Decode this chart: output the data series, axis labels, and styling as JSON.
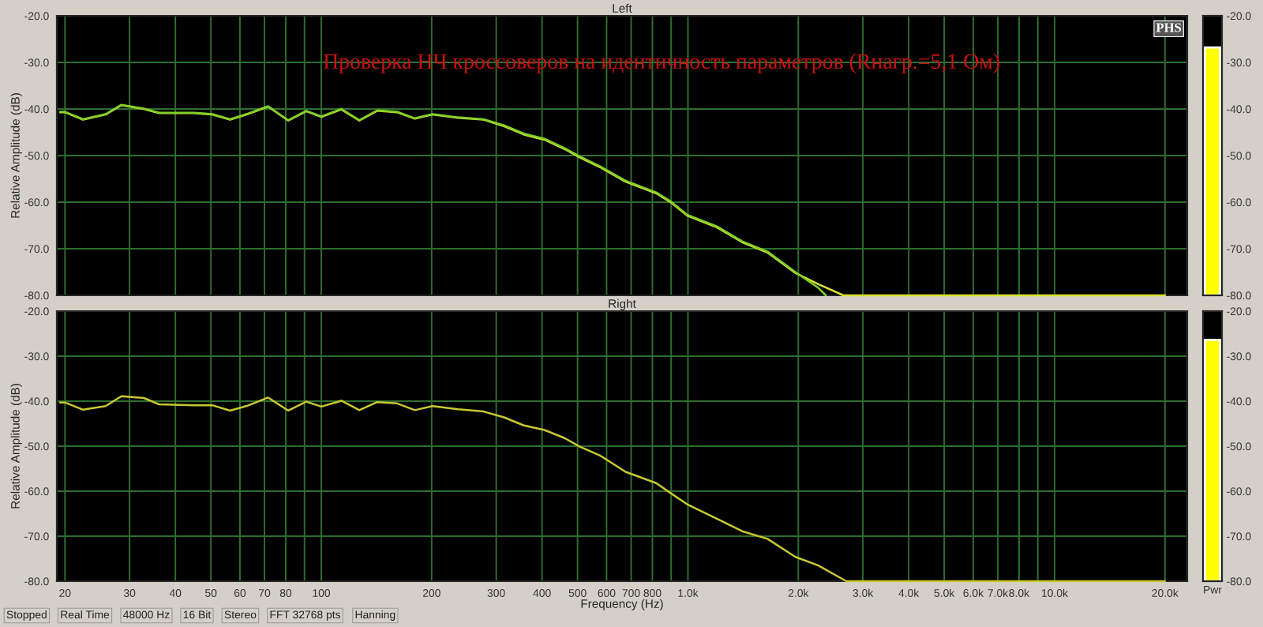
{
  "chart_data": [
    {
      "type": "line",
      "title": "Left",
      "ylabel": "Relative Amplitude (dB)",
      "xlim": [
        19,
        23000
      ],
      "ylim": [
        -80,
        -20
      ],
      "log": "x",
      "grid": true,
      "legend": false,
      "tick_labels": "y",
      "line_style": "solid",
      "marker": "none",
      "xticks": [
        {
          "value": 20,
          "label": null
        },
        {
          "value": 30,
          "label": null
        },
        {
          "value": 40,
          "label": null
        },
        {
          "value": 50,
          "label": null
        },
        {
          "value": 60,
          "label": null
        },
        {
          "value": 70,
          "label": null
        },
        {
          "value": 80,
          "label": null
        },
        {
          "value": 90,
          "label": null
        },
        {
          "value": 100,
          "label": null
        },
        {
          "value": 200,
          "label": null
        },
        {
          "value": 300,
          "label": null
        },
        {
          "value": 400,
          "label": null
        },
        {
          "value": 500,
          "label": null
        },
        {
          "value": 600,
          "label": null
        },
        {
          "value": 700,
          "label": null
        },
        {
          "value": 800,
          "label": null
        },
        {
          "value": 900,
          "label": null
        },
        {
          "value": 1000,
          "label": null
        },
        {
          "value": 2000,
          "label": null
        },
        {
          "value": 3000,
          "label": null
        },
        {
          "value": 4000,
          "label": null
        },
        {
          "value": 5000,
          "label": null
        },
        {
          "value": 6000,
          "label": null
        },
        {
          "value": 7000,
          "label": null
        },
        {
          "value": 8000,
          "label": null
        },
        {
          "value": 9000,
          "label": null
        },
        {
          "value": 10000,
          "label": null
        },
        {
          "value": 20000,
          "label": null
        }
      ],
      "yticks": [
        {
          "value": -20,
          "label": "-20.0"
        },
        {
          "value": -30,
          "label": "-30.0"
        },
        {
          "value": -40,
          "label": "-40.0"
        },
        {
          "value": -50,
          "label": "-50.0"
        },
        {
          "value": -60,
          "label": "-60.0"
        },
        {
          "value": -70,
          "label": "-70.0"
        },
        {
          "value": -80,
          "label": "-80.0"
        }
      ],
      "annotations": [
        "Проверка НЧ кроссоверов на идентичность параметров (Rнагр.=5,1 Ом)",
        "PHS"
      ],
      "series": [
        {
          "color": "#d8e030",
          "x": [
            19.4,
            20,
            22.4,
            25.8,
            28.5,
            32.8,
            36.1,
            45.1,
            50.4,
            56.4,
            63,
            71.6,
            81.3,
            91,
            100,
            113.5,
            127,
            142,
            161,
            180,
            201,
            236,
            277,
            315,
            357,
            406,
            461,
            507,
            576,
            676,
            819,
            900,
            995,
            1199,
            1406,
            1648,
            1964,
            2268,
            2655,
            20000
          ],
          "values": [
            -40.7,
            -40.7,
            -42.3,
            -41.2,
            -39.2,
            -40.0,
            -40.9,
            -40.9,
            -41.2,
            -42.3,
            -41.1,
            -39.5,
            -42.5,
            -40.5,
            -41.7,
            -40.1,
            -42.5,
            -40.4,
            -40.7,
            -42.1,
            -41.2,
            -41.9,
            -42.3,
            -43.7,
            -45.5,
            -46.6,
            -48.6,
            -50.4,
            -52.5,
            -55.6,
            -58.1,
            -60.1,
            -62.9,
            -65.4,
            -68.6,
            -70.8,
            -75.2,
            -77.6,
            -80,
            -80
          ]
        },
        {
          "color": "#7fd02a",
          "x": [
            19.4,
            20,
            22.4,
            25.8,
            28.5,
            32.8,
            36.1,
            45.1,
            50.4,
            56.4,
            63,
            71.6,
            81.3,
            91,
            100,
            113.5,
            127,
            142,
            161,
            180,
            201,
            236,
            277,
            315,
            357,
            406,
            461,
            507,
            576,
            676,
            819,
            900,
            995,
            1199,
            1406,
            1648,
            1964,
            2268,
            2377
          ],
          "values": [
            -40.6,
            -40.6,
            -42.2,
            -41.1,
            -39.1,
            -39.9,
            -40.8,
            -40.8,
            -41.1,
            -42.2,
            -41.0,
            -39.4,
            -42.4,
            -40.4,
            -41.6,
            -40.0,
            -42.4,
            -40.3,
            -40.6,
            -42.0,
            -41.1,
            -41.8,
            -42.2,
            -43.5,
            -45.3,
            -46.4,
            -48.4,
            -50.2,
            -52.3,
            -55.4,
            -57.9,
            -59.9,
            -62.7,
            -65.2,
            -68.4,
            -70.6,
            -75.0,
            -78.4,
            -80
          ]
        }
      ]
    },
    {
      "type": "bar",
      "categories": [
        null
      ],
      "base": [
        -80
      ],
      "values": [
        53.2
      ],
      "colors": [
        "#ffff00"
      ],
      "ylim": [
        -80,
        -20
      ],
      "tick_labels": "y",
      "yticks": [
        {
          "value": -20,
          "label": "-20.0"
        },
        {
          "value": -30,
          "label": "-30.0"
        },
        {
          "value": -40,
          "label": "-40.0"
        },
        {
          "value": -50,
          "label": "-50.0"
        },
        {
          "value": -60,
          "label": "-60.0"
        },
        {
          "value": -70,
          "label": "-70.0"
        },
        {
          "value": -80,
          "label": "-80.0"
        }
      ]
    },
    {
      "type": "line",
      "title": "Right",
      "ylabel": "Relative Amplitude (dB)",
      "xlabel": "Frequency (Hz)",
      "xlim": [
        19,
        23000
      ],
      "ylim": [
        -80,
        -20
      ],
      "log": "x",
      "grid": true,
      "legend": false,
      "line_style": "solid",
      "marker": "none",
      "xticks": [
        {
          "value": 20,
          "label": "20"
        },
        {
          "value": 30,
          "label": "30"
        },
        {
          "value": 40,
          "label": "40"
        },
        {
          "value": 50,
          "label": "50"
        },
        {
          "value": 60,
          "label": "60"
        },
        {
          "value": 70,
          "label": "70"
        },
        {
          "value": 80,
          "label": "80"
        },
        {
          "value": 90,
          "label": null
        },
        {
          "value": 100,
          "label": "100"
        },
        {
          "value": 200,
          "label": "200"
        },
        {
          "value": 300,
          "label": "300"
        },
        {
          "value": 400,
          "label": "400"
        },
        {
          "value": 500,
          "label": "500"
        },
        {
          "value": 600,
          "label": "600"
        },
        {
          "value": 700,
          "label": "700"
        },
        {
          "value": 800,
          "label": "800"
        },
        {
          "value": 900,
          "label": null
        },
        {
          "value": 1000,
          "label": "1.0k"
        },
        {
          "value": 2000,
          "label": "2.0k"
        },
        {
          "value": 3000,
          "label": "3.0k"
        },
        {
          "value": 4000,
          "label": "4.0k"
        },
        {
          "value": 5000,
          "label": "5.0k"
        },
        {
          "value": 6000,
          "label": "6.0k"
        },
        {
          "value": 7000,
          "label": "7.0k"
        },
        {
          "value": 8000,
          "label": "8.0k"
        },
        {
          "value": 9000,
          "label": null
        },
        {
          "value": 10000,
          "label": "10.0k"
        },
        {
          "value": 20000,
          "label": "20.0k"
        }
      ],
      "yticks": [
        {
          "value": -20,
          "label": "-20.0"
        },
        {
          "value": -30,
          "label": "-30.0"
        },
        {
          "value": -40,
          "label": "-40.0"
        },
        {
          "value": -50,
          "label": "-50.0"
        },
        {
          "value": -60,
          "label": "-60.0"
        },
        {
          "value": -70,
          "label": "-70.0"
        },
        {
          "value": -80,
          "label": "-80.0"
        }
      ],
      "annotations": [
        "Stopped",
        "Real Time",
        "48000 Hz",
        "16 Bit",
        "Stereo",
        "FFT 32768 pts",
        "Hanning"
      ],
      "series": [
        {
          "color": "#c8c832",
          "x": [
            19.4,
            20,
            22.4,
            25.8,
            28.5,
            32.8,
            36.1,
            45.1,
            50.4,
            56.4,
            63,
            71.6,
            81.3,
            91,
            100,
            113.5,
            127,
            142,
            161,
            180,
            201,
            236,
            277,
            315,
            357,
            406,
            461,
            507,
            576,
            676,
            819,
            900,
            995,
            1199,
            1406,
            1648,
            1964,
            2268,
            2704,
            20000
          ],
          "values": [
            -40.3,
            -40.3,
            -41.9,
            -41.1,
            -38.9,
            -39.3,
            -40.7,
            -40.9,
            -40.9,
            -42.1,
            -41.0,
            -39.2,
            -42.1,
            -40.1,
            -41.2,
            -39.9,
            -42.0,
            -40.2,
            -40.5,
            -42.0,
            -41.1,
            -41.8,
            -42.3,
            -43.6,
            -45.4,
            -46.4,
            -48.2,
            -50.1,
            -52.1,
            -55.7,
            -58.2,
            -60.5,
            -62.9,
            -66.1,
            -68.9,
            -70.6,
            -74.6,
            -76.5,
            -80,
            -80
          ]
        }
      ]
    },
    {
      "type": "bar",
      "categories": [
        "Pwr"
      ],
      "base": [
        -80
      ],
      "values": [
        53.6
      ],
      "colors": [
        "#ffff00"
      ],
      "ylim": [
        -80,
        -20
      ],
      "yticks": [
        {
          "value": -20,
          "label": "-20.0"
        },
        {
          "value": -30,
          "label": "-30.0"
        },
        {
          "value": -40,
          "label": "-40.0"
        },
        {
          "value": -50,
          "label": "-50.0"
        },
        {
          "value": -60,
          "label": "-60.0"
        },
        {
          "value": -70,
          "label": "-70.0"
        },
        {
          "value": -80,
          "label": "-80.0"
        }
      ]
    }
  ]
}
